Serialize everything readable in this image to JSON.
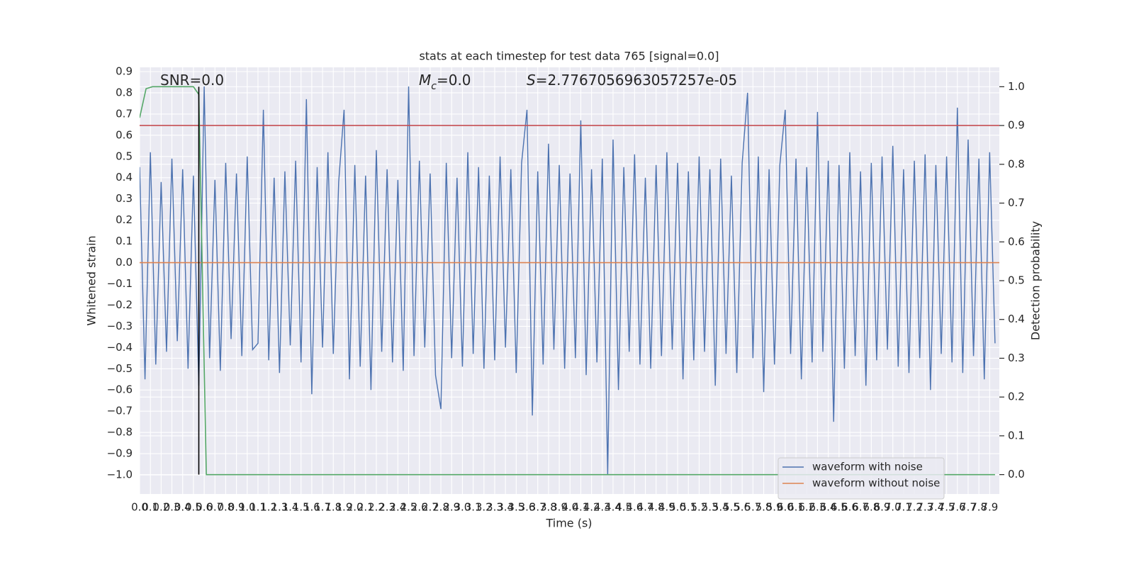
{
  "chart_data": {
    "type": "line",
    "title": "stats at each timestep for test data 765 [signal=0.0]",
    "xlabel": "Time (s)",
    "ylabel": "Whitened strain",
    "y2label": "Detection probability",
    "grid": true,
    "legend": "lower right",
    "annotations": [
      {
        "text": "SNR=0.0"
      },
      {
        "symbol": "M",
        "subscript": "c",
        "text": "=0.0"
      },
      {
        "symbol": "S",
        "text": "=2.7767056963057257e-05"
      }
    ],
    "xlim": [
      0,
      7.99
    ],
    "ylim": [
      -1.09,
      0.92
    ],
    "y2lim": [
      -0.05,
      1.05
    ],
    "xticks": [
      {
        "value": 0,
        "label": "0.0"
      },
      0.1,
      0.2,
      0.3,
      0.4,
      0.5,
      0.6,
      0.7,
      0.8,
      0.9,
      {
        "value": 1,
        "label": "1.0"
      },
      1.1,
      1.2,
      1.3,
      1.4,
      1.5,
      1.6,
      1.7,
      1.8,
      1.9,
      {
        "value": 2,
        "label": "2.0"
      },
      2.1,
      2.2,
      2.3,
      2.4,
      2.5,
      2.6,
      2.7,
      2.8,
      2.9,
      {
        "value": 3,
        "label": "3.0"
      },
      3.1,
      3.2,
      3.3,
      3.4,
      3.5,
      3.6,
      3.7,
      3.8,
      3.9,
      {
        "value": 4,
        "label": "4.0"
      },
      4.1,
      4.2,
      4.3,
      4.4,
      4.5,
      4.6,
      4.7,
      4.8,
      4.9,
      {
        "value": 5,
        "label": "5.0"
      },
      5.1,
      5.2,
      5.3,
      5.4,
      5.5,
      5.6,
      5.7,
      5.8,
      5.9,
      {
        "value": 6,
        "label": "6.0"
      },
      6.1,
      6.2,
      6.3,
      6.4,
      6.5,
      6.6,
      6.7,
      6.8,
      6.9,
      {
        "value": 7,
        "label": "7.0"
      },
      7.1,
      7.2,
      7.3,
      7.4,
      7.5,
      7.6,
      7.7,
      7.8,
      7.9
    ],
    "yticks": [
      {
        "value": -1,
        "label": "−1.0"
      },
      {
        "value": -0.9,
        "label": "−0.9"
      },
      {
        "value": -0.8,
        "label": "−0.8"
      },
      {
        "value": -0.7,
        "label": "−0.7"
      },
      {
        "value": -0.6,
        "label": "−0.6"
      },
      {
        "value": -0.5,
        "label": "−0.5"
      },
      {
        "value": -0.4,
        "label": "−0.4"
      },
      {
        "value": -0.3,
        "label": "−0.3"
      },
      {
        "value": -0.2,
        "label": "−0.2"
      },
      {
        "value": -0.1,
        "label": "−0.1"
      },
      {
        "value": 0,
        "label": "0.0"
      },
      0.1,
      0.2,
      0.3,
      0.4,
      0.5,
      0.6,
      0.7,
      0.8,
      0.9
    ],
    "y2ticks": [
      {
        "value": 0,
        "label": "0.0"
      },
      0.1,
      0.2,
      0.3,
      0.4,
      0.5,
      0.6,
      0.7,
      0.8,
      0.9,
      {
        "value": 1,
        "label": "1.0"
      }
    ],
    "series": [
      {
        "name": "waveform with noise",
        "color": "#4c72b0",
        "axis": "y",
        "x": [
          0,
          0.05,
          0.1,
          0.15,
          0.2,
          0.25,
          0.3,
          0.35,
          0.4,
          0.45,
          0.5,
          0.55,
          0.6,
          0.65,
          0.7,
          0.75,
          0.8,
          0.85,
          0.9,
          0.95,
          1,
          1.05,
          1.1,
          1.15,
          1.2,
          1.25,
          1.3,
          1.35,
          1.4,
          1.45,
          1.5,
          1.55,
          1.6,
          1.65,
          1.7,
          1.75,
          1.8,
          1.85,
          1.9,
          1.95,
          2,
          2.05,
          2.1,
          2.15,
          2.2,
          2.25,
          2.3,
          2.35,
          2.4,
          2.45,
          2.5,
          2.55,
          2.6,
          2.65,
          2.7,
          2.75,
          2.8,
          2.85,
          2.9,
          2.95,
          3,
          3.05,
          3.1,
          3.15,
          3.2,
          3.25,
          3.3,
          3.35,
          3.4,
          3.45,
          3.5,
          3.55,
          3.6,
          3.65,
          3.7,
          3.75,
          3.8,
          3.85,
          3.9,
          3.95,
          4,
          4.05,
          4.1,
          4.15,
          4.2,
          4.25,
          4.3,
          4.35,
          4.4,
          4.45,
          4.5,
          4.55,
          4.6,
          4.65,
          4.7,
          4.75,
          4.8,
          4.85,
          4.9,
          4.95,
          5,
          5.05,
          5.1,
          5.15,
          5.2,
          5.25,
          5.3,
          5.35,
          5.4,
          5.45,
          5.5,
          5.55,
          5.6,
          5.65,
          5.7,
          5.75,
          5.8,
          5.85,
          5.9,
          5.95,
          6,
          6.05,
          6.1,
          6.15,
          6.2,
          6.25,
          6.3,
          6.35,
          6.4,
          6.45,
          6.5,
          6.55,
          6.6,
          6.65,
          6.7,
          6.75,
          6.8,
          6.85,
          6.9,
          6.95,
          7,
          7.05,
          7.1,
          7.15,
          7.2,
          7.25,
          7.3,
          7.35,
          7.4,
          7.45,
          7.5,
          7.55,
          7.6,
          7.65,
          7.7,
          7.75,
          7.8,
          7.85,
          7.9,
          7.95
        ],
        "values": [
          0.45,
          -0.55,
          0.52,
          -0.48,
          0.38,
          -0.42,
          0.49,
          -0.37,
          0.44,
          -0.5,
          0.41,
          -0.58,
          0.83,
          -0.45,
          0.39,
          -0.51,
          0.47,
          -0.36,
          0.42,
          -0.44,
          0.5,
          -0.41,
          -0.38,
          0.72,
          -0.46,
          0.4,
          -0.52,
          0.43,
          -0.39,
          0.48,
          -0.47,
          0.77,
          -0.62,
          0.45,
          -0.4,
          0.52,
          -0.43,
          0.38,
          0.72,
          -0.55,
          0.46,
          -0.49,
          0.41,
          -0.6,
          0.53,
          -0.42,
          0.44,
          -0.47,
          0.39,
          -0.51,
          0.83,
          -0.44,
          0.48,
          -0.4,
          0.42,
          -0.53,
          -0.69,
          0.47,
          -0.45,
          0.4,
          -0.49,
          0.52,
          -0.43,
          0.45,
          -0.5,
          0.41,
          -0.46,
          0.5,
          -0.4,
          0.44,
          -0.52,
          0.47,
          0.72,
          -0.72,
          0.43,
          -0.48,
          0.56,
          -0.41,
          0.46,
          -0.5,
          0.42,
          -0.45,
          0.67,
          -0.53,
          0.44,
          -0.47,
          0.49,
          -1.0,
          0.58,
          -0.6,
          0.45,
          -0.42,
          0.51,
          -0.48,
          0.4,
          -0.5,
          0.46,
          -0.44,
          0.52,
          -0.41,
          0.47,
          -0.55,
          0.43,
          -0.46,
          0.5,
          -0.42,
          0.44,
          -0.58,
          0.49,
          -0.43,
          0.41,
          -0.52,
          0.47,
          0.8,
          -0.45,
          0.5,
          -0.61,
          0.44,
          -0.48,
          0.46,
          0.72,
          -0.43,
          0.49,
          -0.55,
          0.45,
          -0.47,
          0.71,
          -0.42,
          0.48,
          -0.75,
          0.46,
          -0.5,
          0.52,
          -0.44,
          0.43,
          -0.58,
          0.47,
          -0.46,
          0.5,
          -0.41,
          0.55,
          -0.49,
          0.44,
          -0.52,
          0.48,
          -0.45,
          0.51,
          -0.6,
          0.46,
          -0.43,
          0.5,
          -0.47,
          0.73,
          -0.52,
          0.58,
          -0.44,
          0.49,
          -0.55,
          0.52,
          -0.38
        ]
      },
      {
        "name": "waveform without noise",
        "color": "#dd8452",
        "axis": "y",
        "x": [
          0,
          7.99
        ],
        "values": [
          0,
          0
        ]
      },
      {
        "color": "#c44e52",
        "axis": "y2",
        "x": [
          0,
          7.99
        ],
        "values": [
          0.9,
          0.9
        ]
      },
      {
        "color": "#55a868",
        "axis": "y2",
        "x": [
          0,
          0.06,
          0.12,
          0.5,
          0.55,
          0.62,
          0.7,
          7.95
        ],
        "values": [
          0.92,
          0.995,
          1.0,
          1.0,
          0.98,
          0.0,
          0.0,
          0.0
        ]
      },
      {
        "color": "#000000",
        "axis": "y2",
        "x": [
          0.55,
          0.55
        ],
        "values": [
          0,
          1.0
        ]
      }
    ]
  }
}
